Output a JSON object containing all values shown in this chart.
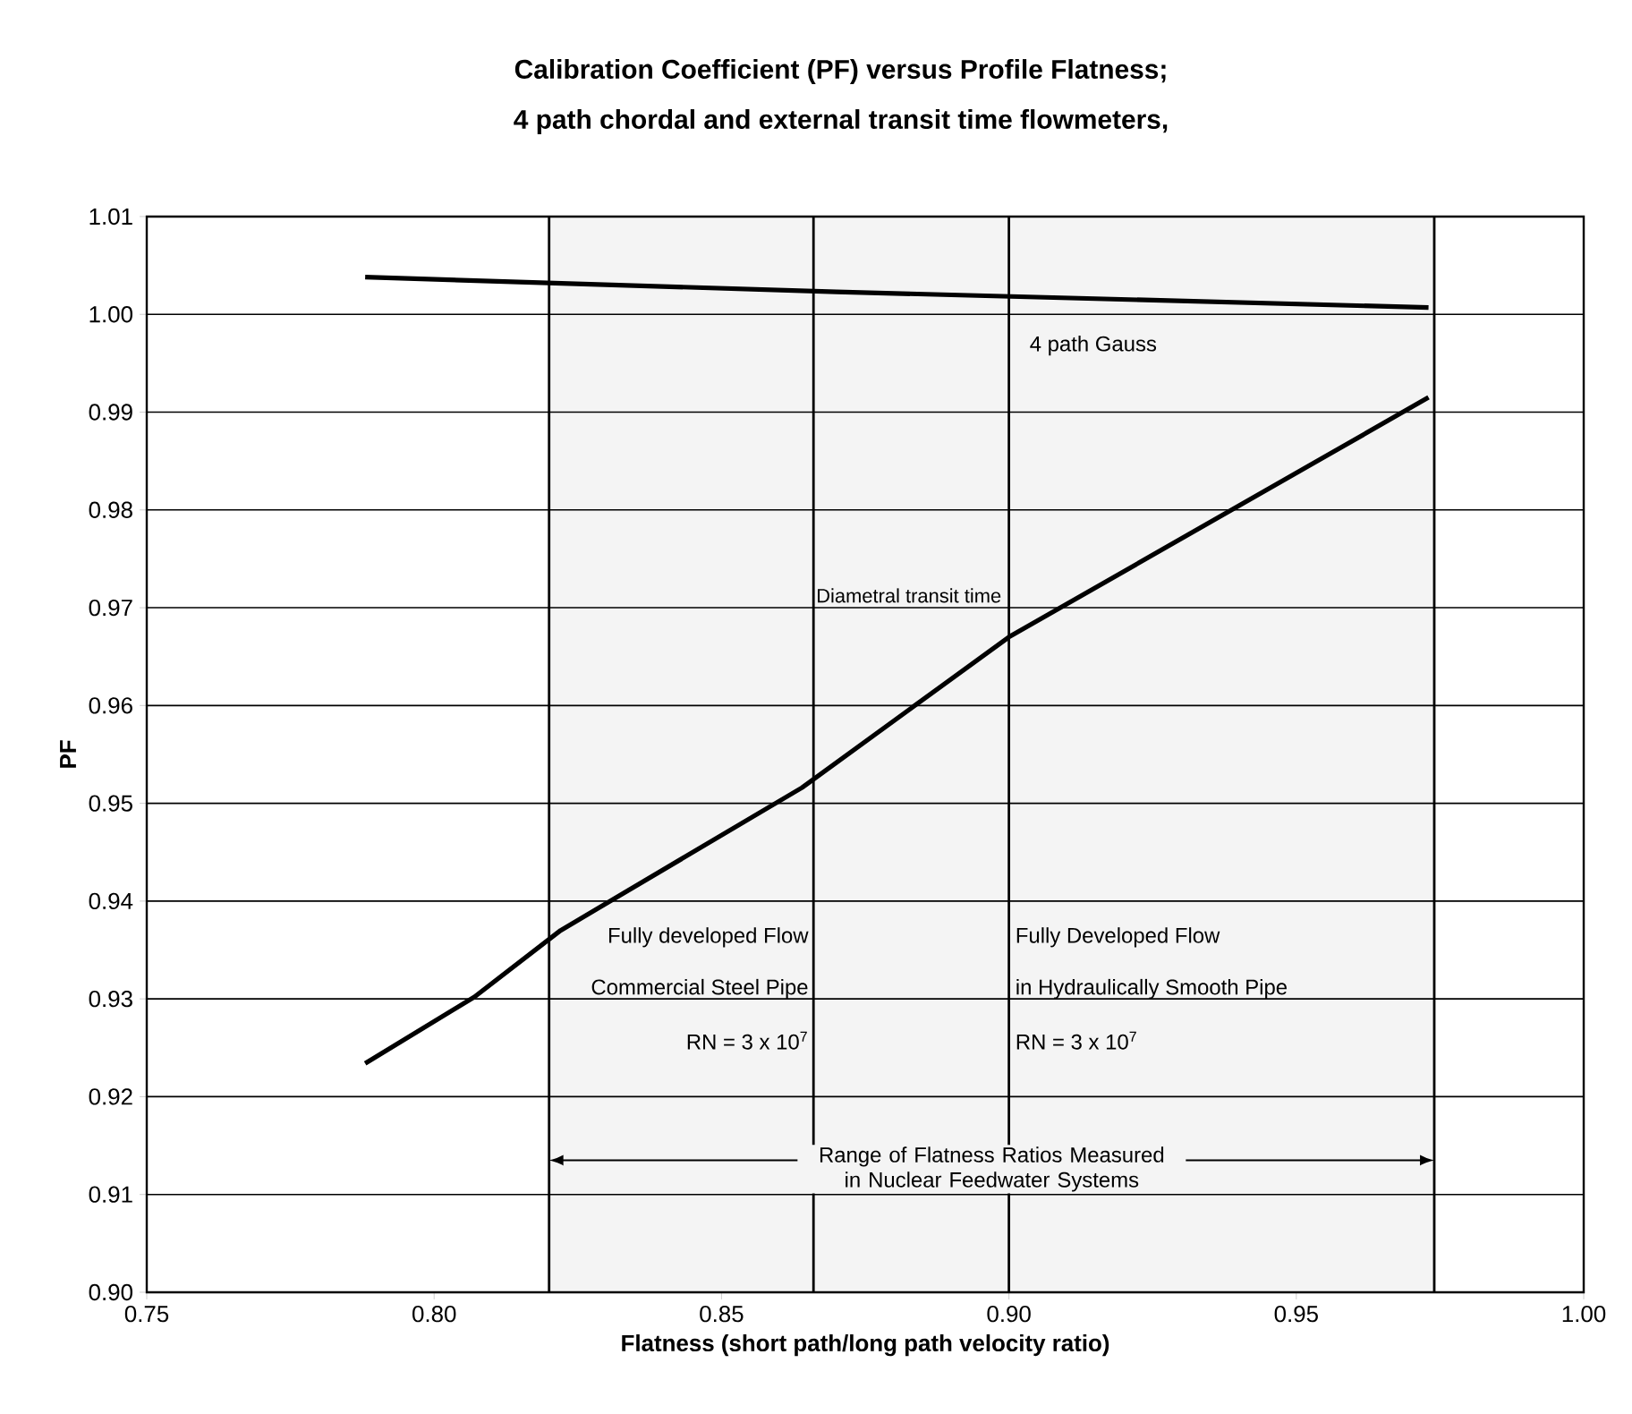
{
  "chart_data": {
    "type": "line",
    "title": "Calibration Coefficient (PF) versus Profile Flatness;",
    "subtitle": "4 path chordal and external transit time flowmeters,",
    "xlabel": "Flatness (short path/long path velocity ratio)",
    "ylabel": "PF",
    "series": [
      {
        "name": "4 path Gauss",
        "color": "#000000",
        "x": [
          0.788,
          0.87,
          0.973
        ],
        "values": [
          1.0038,
          1.0023,
          1.0007
        ]
      },
      {
        "name": "Diametral transit time",
        "color": "#000000",
        "x": [
          0.788,
          0.807,
          0.822,
          0.864,
          0.9,
          0.973
        ],
        "values": [
          0.9234,
          0.9302,
          0.937,
          0.9516,
          0.967,
          0.9915
        ]
      }
    ],
    "xlim": [
      0.75,
      1.0
    ],
    "xticks": [
      0.75,
      {
        "value": 0.8,
        "label": "0.80"
      },
      0.85,
      {
        "value": 0.9,
        "label": "0.90"
      },
      0.95,
      {
        "value": 1.0,
        "label": "1.00"
      }
    ],
    "ylim": [
      0.9,
      1.01
    ],
    "yticks": [
      {
        "value": 0.9,
        "label": "0.90"
      },
      0.91,
      0.92,
      0.93,
      0.94,
      0.95,
      0.96,
      0.97,
      0.98,
      0.99,
      {
        "value": 1.0,
        "label": "1.00"
      },
      1.01
    ],
    "grid": "y",
    "line_style": "solid",
    "marker": "none",
    "ref_lines": [
      {
        "axis": "x",
        "value": 0.82
      },
      {
        "axis": "x",
        "value": 0.866
      },
      {
        "axis": "x",
        "value": 0.9
      },
      {
        "axis": "x",
        "value": 0.974
      }
    ],
    "bands": [
      {
        "axis": "x",
        "from": 0.82,
        "to": 0.974,
        "color": "#f4f4f4",
        "label": "Range of Flatness Ratios Measured in Nuclear Feedwater Systems"
      }
    ],
    "annotations": [
      "Fully developed Flow",
      "Commercial Steel Pipe",
      "RN = 3 x 10$^{7}$",
      "Fully Developed Flow",
      "in Hydraulically Smooth Pipe",
      "RN = 3 x 10$^{7}$"
    ]
  }
}
